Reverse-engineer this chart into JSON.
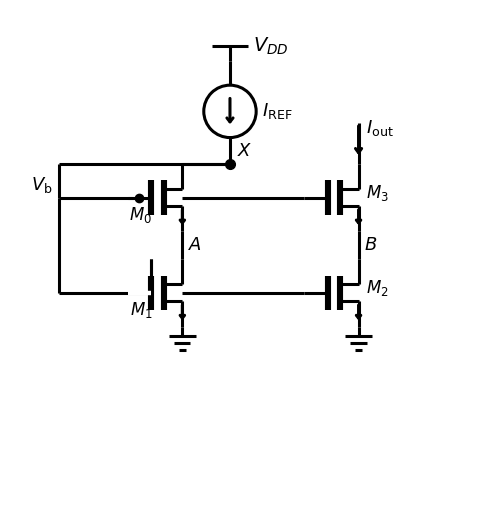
{
  "bg_color": "#ffffff",
  "line_color": "#000000",
  "line_width": 2.2,
  "text_color": "#000000",
  "labels": {
    "VDD": "$V_{DD}$",
    "IREF": "$I_{\\mathrm{REF}}$",
    "Iout": "$I_{\\mathrm{out}}$",
    "X": "$X$",
    "A": "$A$",
    "B": "$B$",
    "Vb": "$V_{\\mathrm{b}}$",
    "M0": "$M_0$",
    "M1": "$M_1$",
    "M2": "$M_2$",
    "M3": "$M_3$"
  },
  "figsize": [
    4.79,
    5.18
  ],
  "dpi": 100
}
